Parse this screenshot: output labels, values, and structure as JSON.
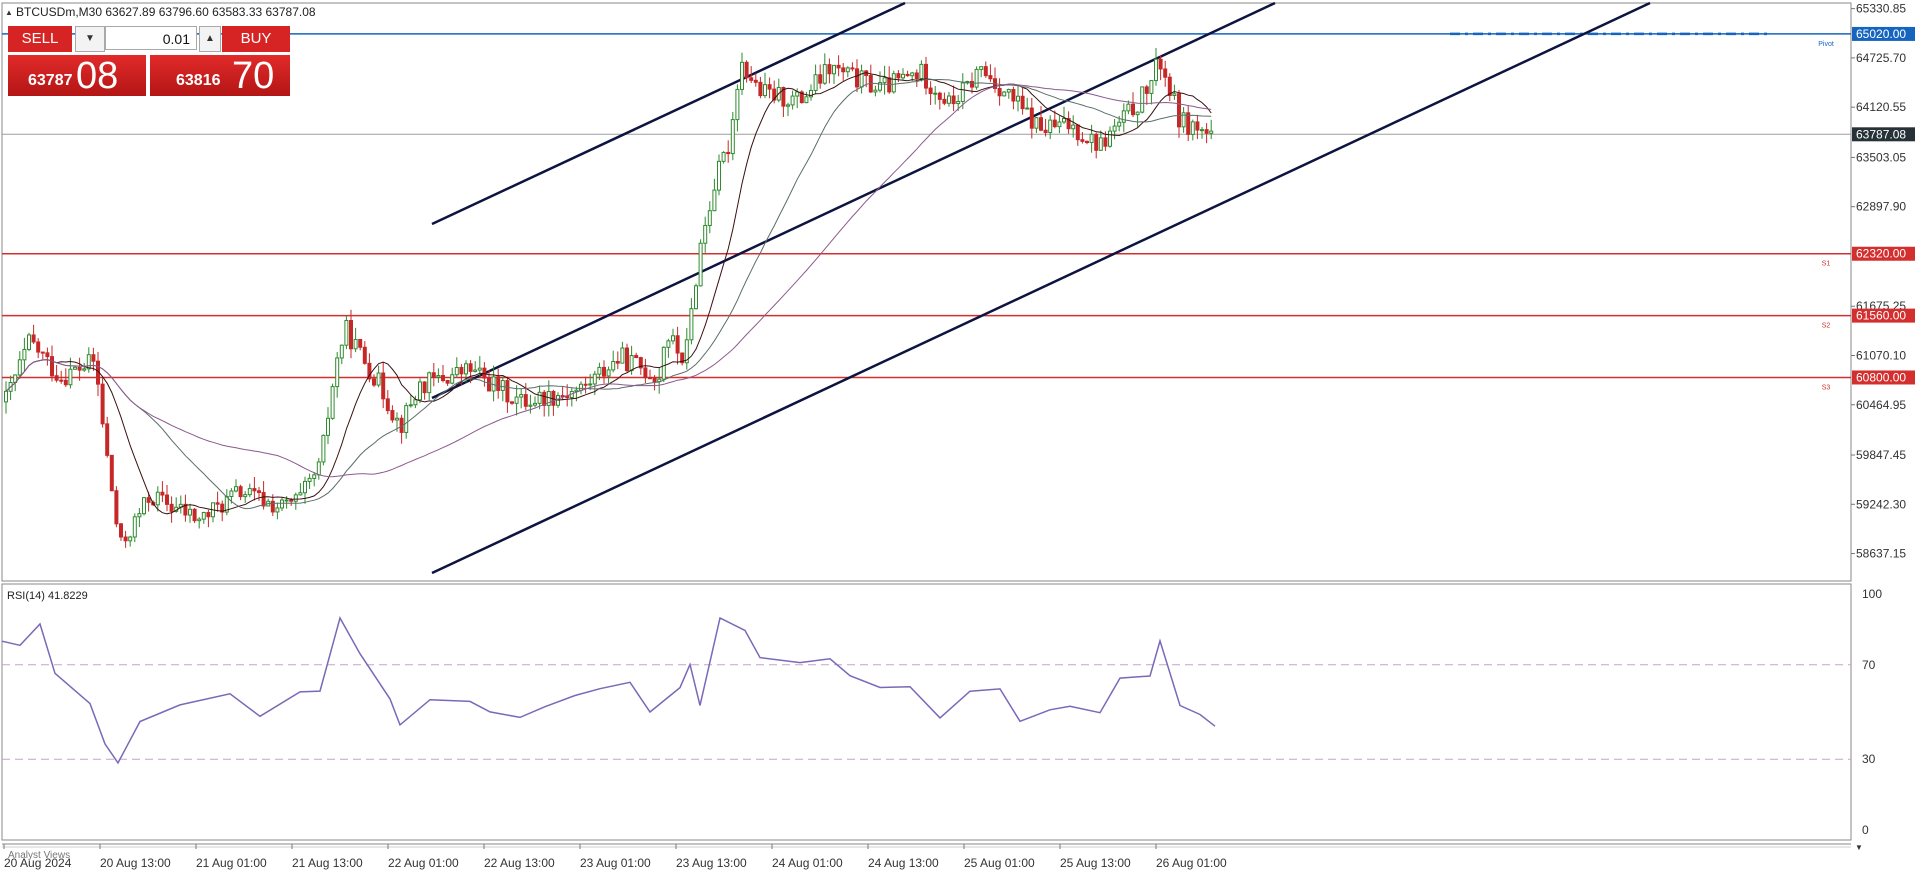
{
  "header": {
    "symbol_label": "BTCUSDm,M30",
    "ohlc": "63627.89 63796.60 63583.33 63787.08"
  },
  "trade_panel": {
    "sell_label": "SELL",
    "buy_label": "BUY",
    "lot_value": "0.01",
    "sell_price_small": "63787",
    "sell_price_big": "08",
    "buy_price_small": "63816",
    "buy_price_big": "70"
  },
  "price_axis": {
    "ticks": [
      "65330.85",
      "64725.70",
      "64120.55",
      "63503.05",
      "62897.90",
      "61675.25",
      "61070.10",
      "60464.95",
      "59847.45",
      "59242.30",
      "58637.15"
    ],
    "current_price": "63787.08"
  },
  "levels": [
    {
      "name": "Pivot",
      "price": "65020.00",
      "color": "#1565c0"
    },
    {
      "name": "S1",
      "price": "62320.00",
      "color": "#d32f2f"
    },
    {
      "name": "S2",
      "price": "61560.00",
      "color": "#d32f2f"
    },
    {
      "name": "S3",
      "price": "60800.00",
      "color": "#d32f2f"
    }
  ],
  "rsi": {
    "label": "RSI(14) 41.8229",
    "ticks": [
      "100",
      "70",
      "30",
      "0"
    ],
    "color": "#7b68b8"
  },
  "time_axis": {
    "ticks": [
      "20 Aug 2024",
      "20 Aug 13:00",
      "21 Aug 01:00",
      "21 Aug 13:00",
      "22 Aug 01:00",
      "22 Aug 13:00",
      "23 Aug 01:00",
      "23 Aug 13:00",
      "24 Aug 01:00",
      "24 Aug 13:00",
      "25 Aug 01:00",
      "25 Aug 13:00",
      "26 Aug 01:00"
    ]
  },
  "bottom_tab": "Analyst Views",
  "colors": {
    "bull": "#2e8b2e",
    "bear": "#c62828",
    "channel": "#0d1440",
    "axis_text": "#333333"
  }
}
